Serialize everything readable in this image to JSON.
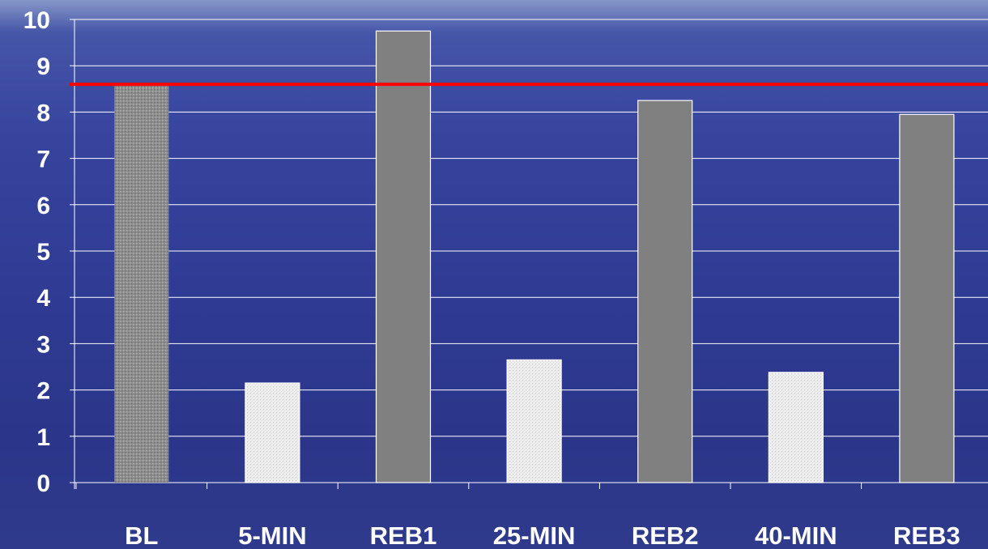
{
  "chart_data": {
    "type": "bar",
    "categories": [
      "BL",
      "5-MIN",
      "REB1",
      "25-MIN",
      "REB2",
      "40-MIN",
      "REB3"
    ],
    "values": [
      8.6,
      2.15,
      9.75,
      2.65,
      8.25,
      2.38,
      7.95
    ],
    "bar_styles": [
      "dark-dotted",
      "light-dotted",
      "solid-gray",
      "light-dotted",
      "solid-gray",
      "light-dotted",
      "solid-gray"
    ],
    "reference_line": {
      "value": 8.6,
      "color": "#ff0000"
    },
    "ylim": [
      0,
      10
    ],
    "yticks": [
      0,
      1,
      2,
      3,
      4,
      5,
      6,
      7,
      8,
      9,
      10
    ],
    "grid": true,
    "legend": "none",
    "title": "",
    "xlabel": "",
    "ylabel": "",
    "colors": {
      "dark_bar": "#8e8e8e",
      "light_bar": "#eeeeee",
      "solid_bar": "#808080",
      "gridline": "#ffffff",
      "text": "#ffffff"
    }
  }
}
